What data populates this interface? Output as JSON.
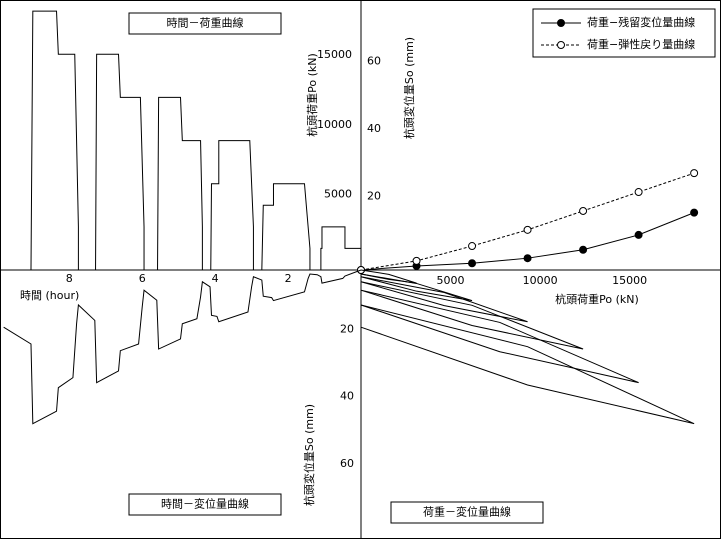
{
  "chart_data": [
    {
      "type": "line",
      "title": "時間－荷重曲線",
      "xlabel": "時間 (hour)",
      "ylabel": "杭頭荷重Po (kN)",
      "x_reversed": true,
      "y_inverted": false,
      "xlim": [
        0,
        9.9
      ],
      "ylim": [
        0,
        19400
      ],
      "xticks": [
        2,
        4,
        6,
        8
      ],
      "yticks": [
        5000,
        10000,
        15000
      ],
      "grid": true,
      "xgrid": [
        1,
        3,
        5,
        7,
        9
      ],
      "ygrid": [
        2500,
        7500,
        12500,
        17500
      ],
      "series": [
        {
          "color": "#000000",
          "x": [
            0,
            0,
            0.44,
            0.44,
            1.07,
            1.07,
            1.1,
            1.1,
            1.4,
            1.4,
            1.45,
            1.5,
            1.55,
            2.4,
            2.4,
            2.68,
            2.72,
            2.95,
            2.95,
            3.0,
            3.05,
            3.9,
            3.9,
            4.1,
            4.12,
            4.35,
            4.35,
            4.4,
            4.9,
            4.95,
            5.55,
            5.58,
            5.95,
            5.95,
            6.05,
            6.6,
            6.65,
            7.25,
            7.28,
            7.75,
            7.75,
            7.85,
            8.3,
            8.35,
            9.0,
            9.05,
            9.8
          ],
          "values": [
            0,
            1550,
            1550,
            3100,
            3100,
            1550,
            1550,
            0,
            0,
            1550,
            3100,
            4650,
            6200,
            6200,
            4650,
            4650,
            0,
            0,
            3100,
            6200,
            9300,
            9300,
            6200,
            6200,
            0,
            0,
            3100,
            9300,
            9300,
            12400,
            12400,
            0,
            0,
            3100,
            12400,
            12400,
            15500,
            15500,
            0,
            0,
            3100,
            15500,
            15500,
            18600,
            18600,
            0,
            0
          ]
        }
      ]
    },
    {
      "type": "line",
      "xlabel": "杭頭荷重Po (kN)",
      "ylabel": "杭頭変位量So (mm)",
      "x_reversed": false,
      "y_inverted": false,
      "xlim": [
        0,
        20100
      ],
      "ylim": [
        0,
        80
      ],
      "xticks": [
        5000,
        10000,
        15000
      ],
      "yticks": [
        20,
        40,
        60
      ],
      "grid": true,
      "xgrid": [
        2500,
        7500,
        12500,
        17500
      ],
      "ygrid": [
        10,
        30,
        50,
        70
      ],
      "legend": "upper right",
      "series": [
        {
          "name": "荷重−残留変位量曲線",
          "color": "#000000",
          "marker_filled": true,
          "dashed": false,
          "x": [
            0,
            3100,
            6200,
            9300,
            12400,
            15500,
            18600
          ],
          "values": [
            0,
            1.2,
            2,
            3.5,
            6,
            10.4,
            17
          ]
        },
        {
          "name": "荷重−弾性戻り量曲線",
          "color": "#000000",
          "marker_filled": false,
          "dashed": true,
          "x": [
            0,
            3100,
            6200,
            9300,
            12400,
            15500,
            18600
          ],
          "values": [
            0,
            2.7,
            7.1,
            11.9,
            17.5,
            23.1,
            28.7
          ]
        }
      ]
    },
    {
      "type": "line",
      "title": "時間－変位量曲線",
      "ylabel": "杭頭変位量So (mm)",
      "x_reversed": true,
      "y_inverted": true,
      "xlim": [
        0,
        9.9
      ],
      "ylim": [
        0,
        80
      ],
      "yticks": [
        20,
        40,
        60
      ],
      "grid": true,
      "xgrid": [
        1,
        2,
        3,
        4,
        5,
        6,
        7,
        8,
        9
      ],
      "ygrid": [
        10,
        30,
        50,
        70
      ],
      "series": [
        {
          "color": "#000000",
          "x": [
            0,
            0.44,
            0.5,
            1.07,
            1.1,
            1.2,
            1.4,
            1.45,
            1.55,
            2.4,
            2.45,
            2.68,
            2.72,
            2.95,
            3.0,
            3.1,
            3.9,
            3.95,
            4.1,
            4.14,
            4.35,
            4.4,
            4.5,
            4.9,
            4.95,
            5.55,
            5.6,
            5.95,
            6.0,
            6.1,
            6.6,
            6.65,
            7.25,
            7.3,
            7.75,
            7.8,
            7.9,
            8.3,
            8.35,
            9.0,
            9.05,
            9.8
          ],
          "values": [
            0,
            1.8,
            2.5,
            3.9,
            2.0,
            1.4,
            1.2,
            2.5,
            6.5,
            9.1,
            8.2,
            7.8,
            3.0,
            2.0,
            5.0,
            12.5,
            15.4,
            13.8,
            13.5,
            5.0,
            3.5,
            8.0,
            14.5,
            16.0,
            20.5,
            23.5,
            9.0,
            6.0,
            11.0,
            22.0,
            24.0,
            30.0,
            33.5,
            15.0,
            10.4,
            16.0,
            32.0,
            35.0,
            42.0,
            45.7,
            22.0,
            17.0
          ]
        }
      ]
    },
    {
      "type": "line",
      "title": "荷重－変位量曲線",
      "x_reversed": false,
      "y_inverted": true,
      "xlim": [
        0,
        20100
      ],
      "ylim": [
        0,
        80
      ],
      "grid": true,
      "xgrid": [
        2500,
        5000,
        7500,
        10000,
        12500,
        15000,
        17500
      ],
      "ygrid": [
        10,
        20,
        30,
        40,
        50,
        60,
        70
      ],
      "series": [
        {
          "color": "#000000",
          "x": [
            0,
            1550,
            3100,
            1550,
            0
          ],
          "values": [
            0,
            1.3,
            3.9,
            2.8,
            1.2
          ]
        },
        {
          "color": "#000000",
          "x": [
            0,
            3100,
            6200,
            3100,
            0
          ],
          "values": [
            1.2,
            4.0,
            9.1,
            6.3,
            2.0
          ]
        },
        {
          "color": "#000000",
          "x": [
            0,
            4650,
            9300,
            4650,
            0
          ],
          "values": [
            2.0,
            6.7,
            15.4,
            10.6,
            3.5
          ]
        },
        {
          "color": "#000000",
          "x": [
            0,
            6200,
            12400,
            6200,
            0
          ],
          "values": [
            3.5,
            10.5,
            23.5,
            16.5,
            6.0
          ]
        },
        {
          "color": "#000000",
          "x": [
            0,
            7750,
            15500,
            7750,
            0
          ],
          "values": [
            6.0,
            15.6,
            33.5,
            24.3,
            10.4
          ]
        },
        {
          "color": "#000000",
          "x": [
            0,
            9300,
            18600,
            9300,
            0
          ],
          "values": [
            10.4,
            22.8,
            45.7,
            34.2,
            17.0
          ]
        }
      ]
    }
  ]
}
